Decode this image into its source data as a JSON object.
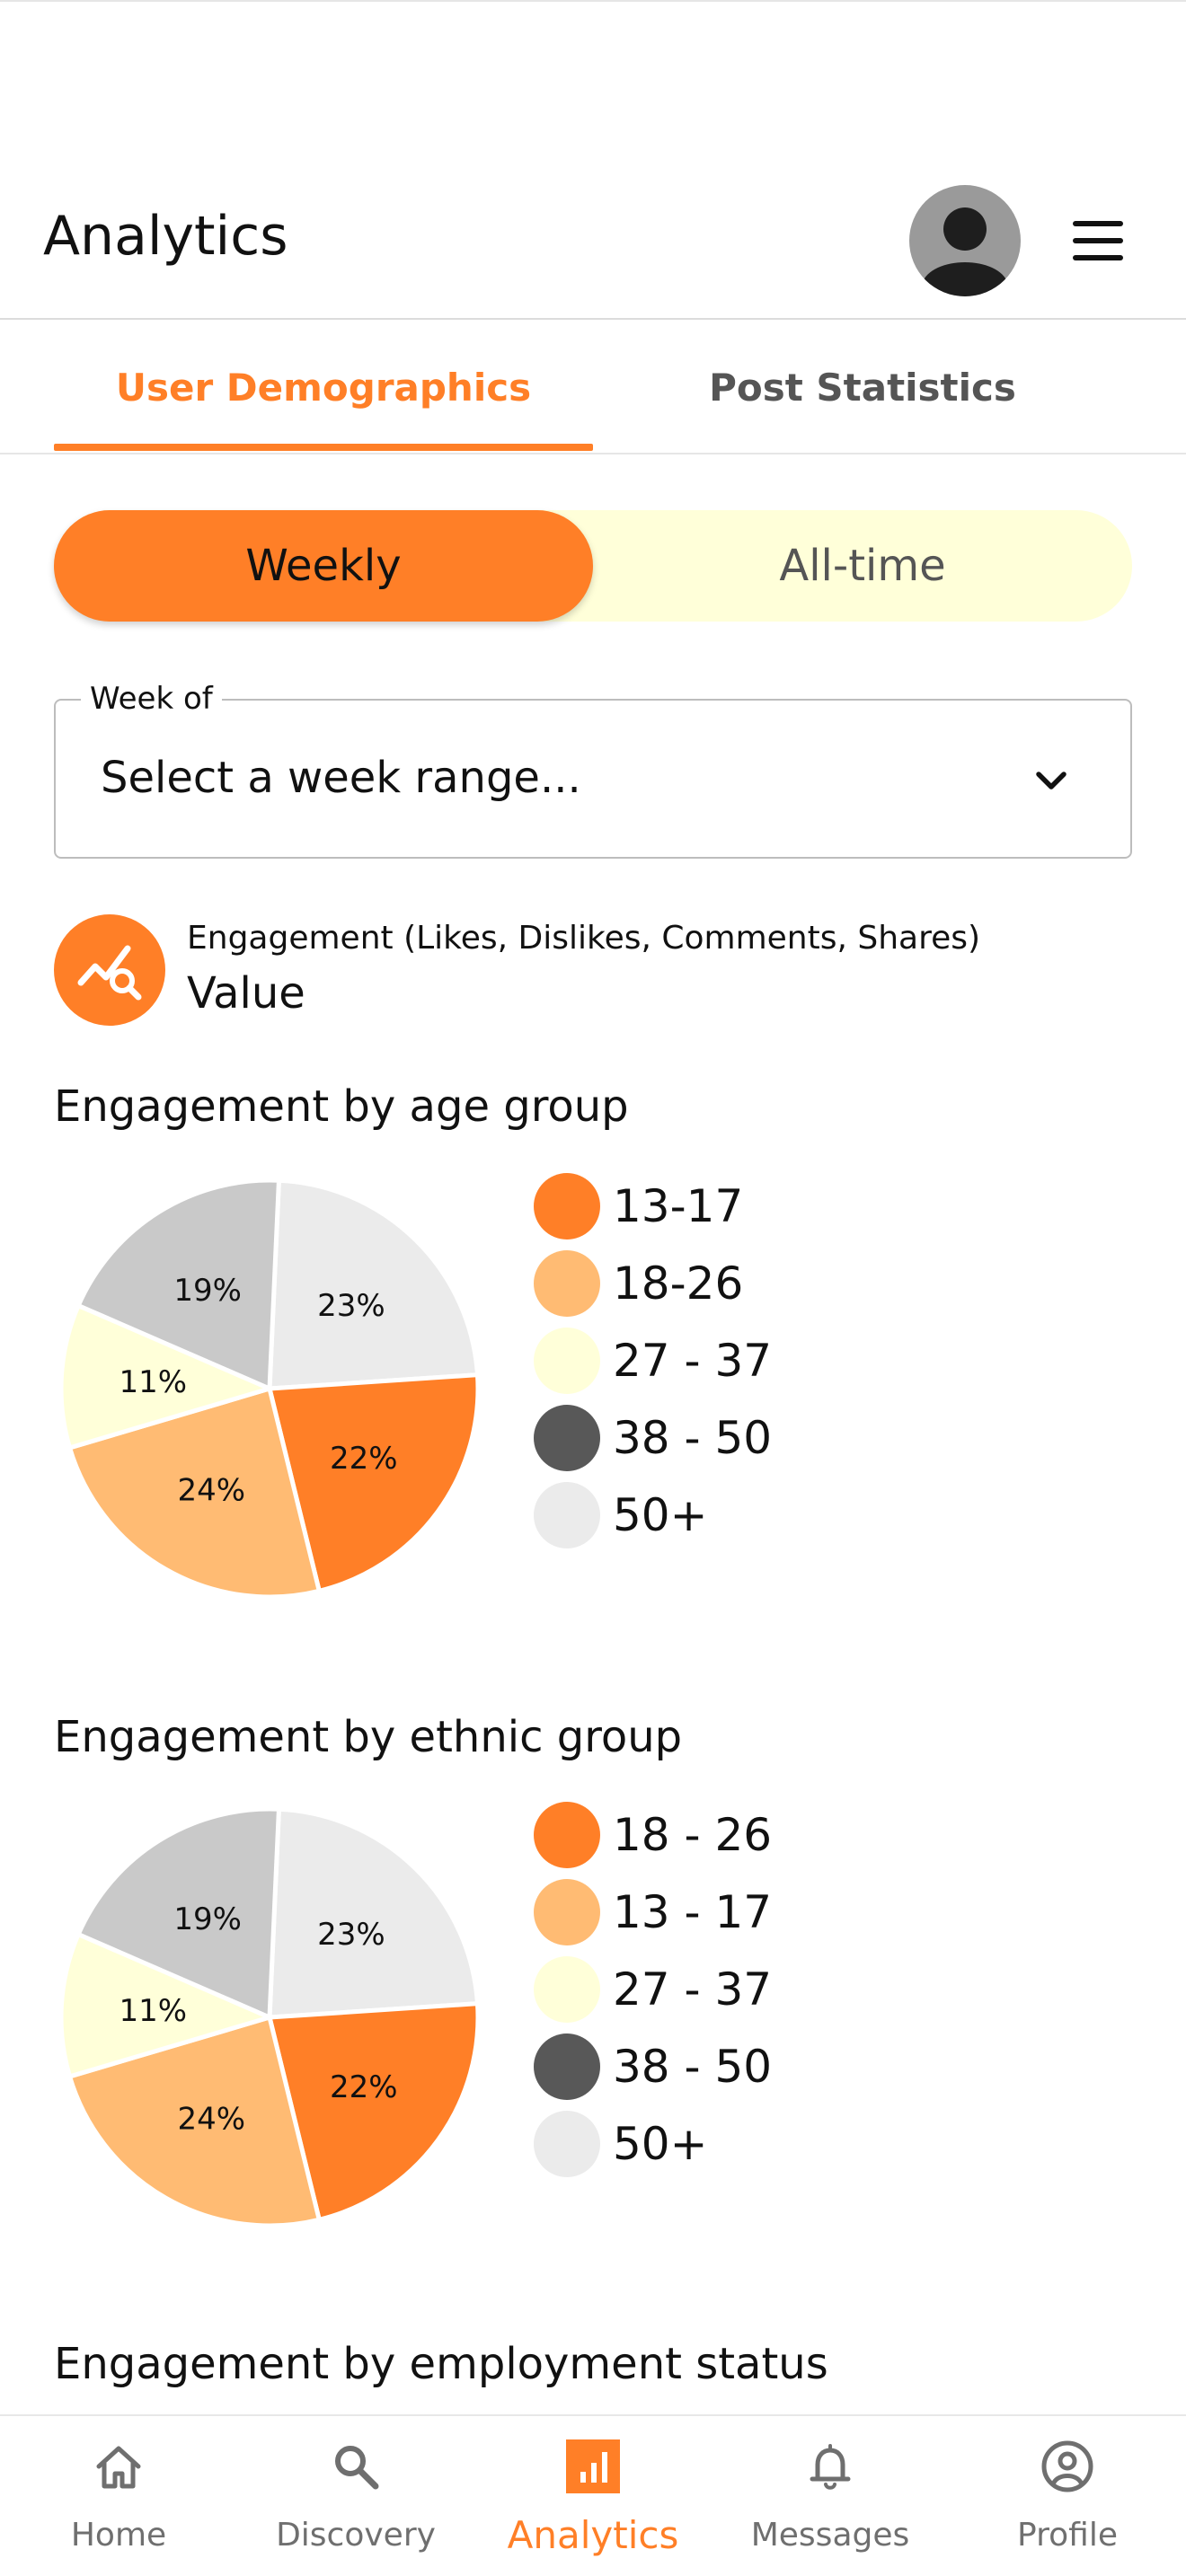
{
  "header": {
    "title": "Analytics",
    "avatar_icon": "user-avatar-icon",
    "menu_icon": "hamburger-menu-icon"
  },
  "tabs": [
    {
      "label": "User Demographics",
      "active": true
    },
    {
      "label": "Post Statistics",
      "active": false
    }
  ],
  "period_toggle": {
    "options": [
      "Weekly",
      "All-time"
    ],
    "selected": "Weekly"
  },
  "week_select": {
    "label": "Week of",
    "placeholder": "Select a week range..."
  },
  "engagement_summary": {
    "icon": "trend-search-icon",
    "label": "Engagement (Likes, Dislikes, Comments, Shares)",
    "value": "Value"
  },
  "colors": {
    "accent": "#ff7f27",
    "light_orange": "#ffbb73",
    "pale_yellow": "#ffffd9",
    "dark_gray": "#585858",
    "light_gray": "#ebebeb",
    "mid_gray": "#c9c9c9"
  },
  "chart_data": [
    {
      "type": "pie",
      "title": "Engagement by age group",
      "slices": [
        {
          "value": 23,
          "label": "23%",
          "color": "#ebebeb"
        },
        {
          "value": 22,
          "label": "22%",
          "color": "#ff7f27"
        },
        {
          "value": 24,
          "label": "24%",
          "color": "#ffbb73"
        },
        {
          "value": 11,
          "label": "11%",
          "color": "#ffffd9"
        },
        {
          "value": 19,
          "label": "19%",
          "color": "#c9c9c9"
        }
      ],
      "legend": [
        {
          "label": "13-17",
          "color": "#ff7f27"
        },
        {
          "label": "18-26",
          "color": "#ffbb73"
        },
        {
          "label": "27 - 37",
          "color": "#ffffd9"
        },
        {
          "label": "38 - 50",
          "color": "#585858"
        },
        {
          "label": "50+",
          "color": "#ebebeb"
        }
      ]
    },
    {
      "type": "pie",
      "title": "Engagement by ethnic group",
      "slices": [
        {
          "value": 23,
          "label": "23%",
          "color": "#ebebeb"
        },
        {
          "value": 22,
          "label": "22%",
          "color": "#ff7f27"
        },
        {
          "value": 24,
          "label": "24%",
          "color": "#ffbb73"
        },
        {
          "value": 11,
          "label": "11%",
          "color": "#ffffd9"
        },
        {
          "value": 19,
          "label": "19%",
          "color": "#c9c9c9"
        }
      ],
      "legend": [
        {
          "label": "18 - 26",
          "color": "#ff7f27"
        },
        {
          "label": "13 - 17",
          "color": "#ffbb73"
        },
        {
          "label": "27 - 37",
          "color": "#ffffd9"
        },
        {
          "label": "38 - 50",
          "color": "#585858"
        },
        {
          "label": "50+",
          "color": "#ebebeb"
        }
      ]
    }
  ],
  "next_section_title": "Engagement by employment status",
  "bottom_nav": [
    {
      "label": "Home",
      "icon": "home-icon",
      "active": false
    },
    {
      "label": "Discovery",
      "icon": "search-icon",
      "active": false
    },
    {
      "label": "Analytics",
      "icon": "analytics-icon",
      "active": true
    },
    {
      "label": "Messages",
      "icon": "bell-icon",
      "active": false
    },
    {
      "label": "Profile",
      "icon": "profile-icon",
      "active": false
    }
  ]
}
